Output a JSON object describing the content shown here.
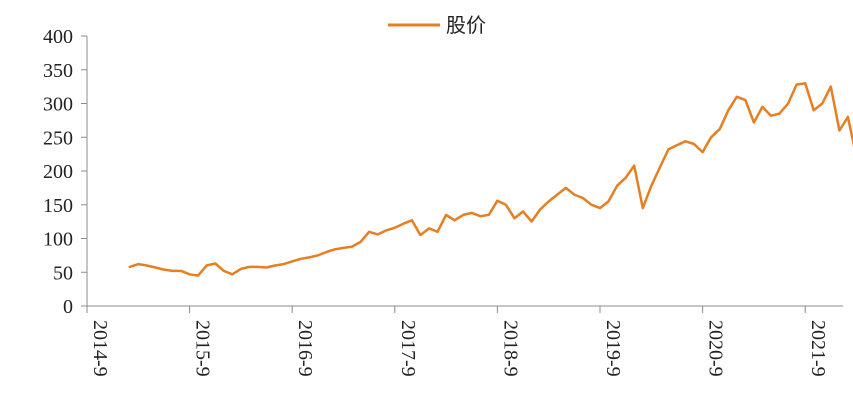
{
  "chart_data": {
    "type": "line",
    "title": "",
    "xlabel": "",
    "ylabel": "",
    "ylim": [
      0,
      400
    ],
    "yticks": [
      0,
      50,
      100,
      150,
      200,
      250,
      300,
      350,
      400
    ],
    "ytick_labels": [
      "0",
      "50",
      "100",
      "150",
      "200",
      "250",
      "300",
      "350",
      "400"
    ],
    "xticks": [
      "2014-9",
      "2015-9",
      "2016-9",
      "2017-9",
      "2018-9",
      "2019-9",
      "2020-9",
      "2021-9"
    ],
    "grid": false,
    "legend_position": "top-center",
    "series": [
      {
        "name": "股价",
        "color": "#E67E22",
        "x": [
          "2015-02",
          "2015-03",
          "2015-04",
          "2015-05",
          "2015-06",
          "2015-07",
          "2015-08",
          "2015-09",
          "2015-10",
          "2015-11",
          "2015-12",
          "2016-01",
          "2016-02",
          "2016-03",
          "2016-04",
          "2016-05",
          "2016-06",
          "2016-07",
          "2016-08",
          "2016-09",
          "2016-10",
          "2016-11",
          "2016-12",
          "2017-01",
          "2017-02",
          "2017-03",
          "2017-04",
          "2017-05",
          "2017-06",
          "2017-07",
          "2017-08",
          "2017-09",
          "2017-10",
          "2017-11",
          "2017-12",
          "2018-01",
          "2018-02",
          "2018-03",
          "2018-04",
          "2018-05",
          "2018-06",
          "2018-07",
          "2018-08",
          "2018-09",
          "2018-10",
          "2018-11",
          "2018-12",
          "2019-01",
          "2019-02",
          "2019-03",
          "2019-04",
          "2019-05",
          "2019-06",
          "2019-07",
          "2019-08",
          "2019-09",
          "2019-10",
          "2019-11",
          "2019-12",
          "2020-01",
          "2020-02",
          "2020-03",
          "2020-04",
          "2020-05",
          "2020-06",
          "2020-07",
          "2020-08",
          "2020-09",
          "2020-10",
          "2020-11",
          "2020-12",
          "2021-01",
          "2021-02",
          "2021-03",
          "2021-04",
          "2021-05",
          "2021-06",
          "2021-07",
          "2021-08",
          "2021-09",
          "2021-10",
          "2021-11",
          "2021-12",
          "2022-01",
          "2022-02",
          "2022-03"
        ],
        "values": [
          58,
          62,
          60,
          57,
          54,
          52,
          52,
          47,
          45,
          60,
          63,
          52,
          47,
          55,
          58,
          58,
          57,
          60,
          62,
          66,
          70,
          72,
          75,
          80,
          84,
          86,
          88,
          95,
          110,
          106,
          112,
          116,
          122,
          127,
          105,
          115,
          110,
          135,
          127,
          135,
          138,
          133,
          135,
          156,
          150,
          130,
          140,
          125,
          143,
          155,
          165,
          175,
          165,
          160,
          150,
          145,
          155,
          178,
          190,
          208,
          145,
          178,
          205,
          232,
          238,
          244,
          240,
          228,
          250,
          262,
          290,
          310,
          305,
          272,
          295,
          282,
          285,
          300,
          328,
          330,
          290,
          300,
          325,
          260,
          280,
          220
        ]
      }
    ]
  }
}
